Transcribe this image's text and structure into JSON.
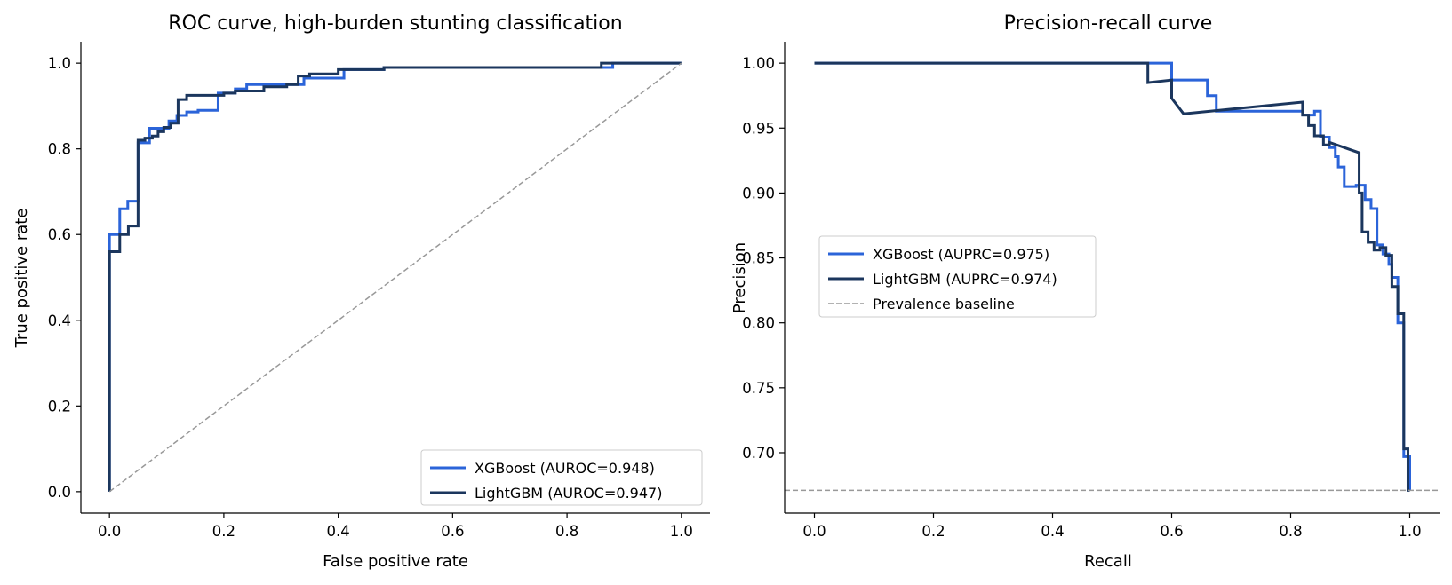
{
  "chart_data": [
    {
      "type": "line",
      "title": "ROC curve, high-burden stunting classification",
      "xlabel": "False positive rate",
      "ylabel": "True positive rate",
      "xlim": [
        -0.05,
        1.05
      ],
      "ylim": [
        -0.05,
        1.05
      ],
      "xticks": [
        "0.0",
        "0.2",
        "0.4",
        "0.6",
        "0.8",
        "1.0"
      ],
      "yticks": [
        "0.0",
        "0.2",
        "0.4",
        "0.6",
        "0.8",
        "1.0"
      ],
      "grid": false,
      "legend_position": "lower-right",
      "series": [
        {
          "name": "XGBoost (AUROC=0.948)",
          "color": "#2b64d9",
          "step": true,
          "x": [
            0.0,
            0.0,
            0.018,
            0.018,
            0.032,
            0.032,
            0.05,
            0.05,
            0.07,
            0.07,
            0.104,
            0.104,
            0.118,
            0.118,
            0.135,
            0.135,
            0.155,
            0.155,
            0.19,
            0.19,
            0.22,
            0.22,
            0.24,
            0.24,
            0.34,
            0.34,
            0.41,
            0.41,
            0.48,
            0.48,
            0.88,
            0.88,
            1.0
          ],
          "y": [
            0.0,
            0.6,
            0.6,
            0.66,
            0.66,
            0.678,
            0.678,
            0.814,
            0.814,
            0.848,
            0.848,
            0.865,
            0.865,
            0.878,
            0.878,
            0.886,
            0.886,
            0.89,
            0.89,
            0.93,
            0.93,
            0.94,
            0.94,
            0.95,
            0.95,
            0.965,
            0.965,
            0.985,
            0.985,
            0.99,
            0.99,
            1.0,
            1.0
          ]
        },
        {
          "name": "LightGBM (AUROC=0.947)",
          "color": "#1b365d",
          "step": true,
          "x": [
            0.0,
            0.0,
            0.018,
            0.018,
            0.033,
            0.033,
            0.05,
            0.05,
            0.062,
            0.062,
            0.075,
            0.075,
            0.085,
            0.085,
            0.095,
            0.095,
            0.107,
            0.107,
            0.12,
            0.12,
            0.135,
            0.135,
            0.2,
            0.2,
            0.22,
            0.22,
            0.27,
            0.27,
            0.31,
            0.31,
            0.33,
            0.33,
            0.35,
            0.35,
            0.4,
            0.4,
            0.48,
            0.48,
            0.86,
            0.86,
            1.0
          ],
          "y": [
            0.0,
            0.56,
            0.56,
            0.6,
            0.6,
            0.62,
            0.62,
            0.82,
            0.82,
            0.825,
            0.825,
            0.83,
            0.83,
            0.84,
            0.84,
            0.85,
            0.85,
            0.86,
            0.86,
            0.915,
            0.915,
            0.925,
            0.925,
            0.93,
            0.93,
            0.935,
            0.935,
            0.945,
            0.945,
            0.95,
            0.95,
            0.97,
            0.97,
            0.975,
            0.975,
            0.985,
            0.985,
            0.99,
            0.99,
            1.0,
            1.0
          ]
        },
        {
          "name": "",
          "color": "#999999",
          "dashed": true,
          "x": [
            0.0,
            1.0
          ],
          "y": [
            0.0,
            1.0
          ]
        }
      ]
    },
    {
      "type": "line",
      "title": "Precision-recall curve",
      "xlabel": "Recall",
      "ylabel": "Precision",
      "xlim": [
        -0.05,
        1.05
      ],
      "ylim": [
        0.6535,
        1.0165
      ],
      "xticks": [
        "0.0",
        "0.2",
        "0.4",
        "0.6",
        "0.8",
        "1.0"
      ],
      "yticks": [
        "0.70",
        "0.75",
        "0.80",
        "0.85",
        "0.90",
        "0.95",
        "1.00"
      ],
      "grid": false,
      "legend_position": "center-left",
      "series": [
        {
          "name": "XGBoost (AUPRC=0.975)",
          "color": "#2b64d9",
          "step": true,
          "x": [
            0.0,
            0.6,
            0.6,
            0.66,
            0.66,
            0.675,
            0.675,
            0.82,
            0.82,
            0.84,
            0.84,
            0.85,
            0.85,
            0.865,
            0.865,
            0.875,
            0.875,
            0.88,
            0.88,
            0.89,
            0.89,
            0.91,
            0.91,
            0.925,
            0.925,
            0.935,
            0.935,
            0.945,
            0.945,
            0.955,
            0.955,
            0.965,
            0.965,
            0.97,
            0.97,
            0.98,
            0.98,
            0.99,
            0.99,
            1.0,
            1.0
          ],
          "y": [
            1.0,
            1.0,
            0.987,
            0.987,
            0.975,
            0.975,
            0.963,
            0.963,
            0.96,
            0.96,
            0.963,
            0.963,
            0.943,
            0.943,
            0.935,
            0.935,
            0.928,
            0.928,
            0.92,
            0.92,
            0.905,
            0.905,
            0.906,
            0.906,
            0.895,
            0.895,
            0.888,
            0.888,
            0.86,
            0.86,
            0.853,
            0.853,
            0.845,
            0.845,
            0.835,
            0.835,
            0.8,
            0.8,
            0.697,
            0.697,
            0.671
          ]
        },
        {
          "name": "LightGBM (AUPRC=0.974)",
          "color": "#1b365d",
          "step": false,
          "x": [
            0.0,
            0.56,
            0.56,
            0.6,
            0.6,
            0.62,
            0.82,
            0.82,
            0.83,
            0.83,
            0.84,
            0.84,
            0.855,
            0.855,
            0.865,
            0.865,
            0.915,
            0.915,
            0.92,
            0.92,
            0.93,
            0.93,
            0.94,
            0.94,
            0.95,
            0.95,
            0.96,
            0.96,
            0.97,
            0.97,
            0.98,
            0.98,
            0.99,
            0.99,
            0.997,
            0.997,
            1.0
          ],
          "y": [
            1.0,
            1.0,
            0.985,
            0.987,
            0.973,
            0.961,
            0.97,
            0.96,
            0.96,
            0.952,
            0.952,
            0.944,
            0.944,
            0.937,
            0.937,
            0.939,
            0.931,
            0.9,
            0.9,
            0.87,
            0.87,
            0.862,
            0.862,
            0.856,
            0.856,
            0.858,
            0.858,
            0.852,
            0.852,
            0.828,
            0.828,
            0.807,
            0.807,
            0.703,
            0.703,
            0.671,
            0.671
          ]
        },
        {
          "name": "Prevalence baseline",
          "color": "#999999",
          "dashed": true,
          "x": [
            -0.05,
            1.05
          ],
          "y": [
            0.671,
            0.671
          ]
        }
      ]
    }
  ]
}
